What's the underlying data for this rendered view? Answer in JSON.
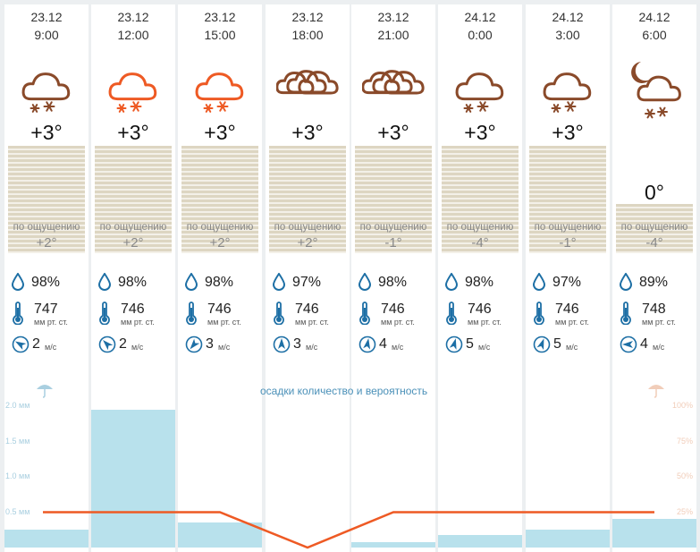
{
  "columns": [
    {
      "date": "23.12",
      "time": "9:00",
      "icon": "cloud-snow-icon",
      "icon_color": "#8a4a2a",
      "temp": "+3°",
      "feels_label": "по ощущению",
      "feels": "+2°",
      "humidity": "98%",
      "pressure": "747",
      "pressure_unit": "мм рт. ст.",
      "wind_speed": "2",
      "wind_unit": "м/с",
      "wind_dir_deg": 300,
      "precip_mm": 0.25,
      "probability": 25
    },
    {
      "date": "23.12",
      "time": "12:00",
      "icon": "cloud-snow-icon",
      "icon_color": "#ee5a24",
      "temp": "+3°",
      "feels_label": "по ощущению",
      "feels": "+2°",
      "humidity": "98%",
      "pressure": "746",
      "pressure_unit": "мм рт. ст.",
      "wind_speed": "2",
      "wind_unit": "м/с",
      "wind_dir_deg": 315,
      "precip_mm": 1.95,
      "probability": 25
    },
    {
      "date": "23.12",
      "time": "15:00",
      "icon": "cloud-snow-icon",
      "icon_color": "#ee5a24",
      "temp": "+3°",
      "feels_label": "по ощущению",
      "feels": "+2°",
      "humidity": "98%",
      "pressure": "746",
      "pressure_unit": "мм рт. ст.",
      "wind_speed": "3",
      "wind_unit": "м/с",
      "wind_dir_deg": 220,
      "precip_mm": 0.35,
      "probability": 25
    },
    {
      "date": "23.12",
      "time": "18:00",
      "icon": "cloudy-icon",
      "icon_color": "#8a4a2a",
      "temp": "+3°",
      "feels_label": "по ощущению",
      "feels": "+2°",
      "humidity": "97%",
      "pressure": "746",
      "pressure_unit": "мм рт. ст.",
      "wind_speed": "3",
      "wind_unit": "м/с",
      "wind_dir_deg": 0,
      "precip_mm": 0,
      "probability": 0
    },
    {
      "date": "23.12",
      "time": "21:00",
      "icon": "cloudy-icon",
      "icon_color": "#8a4a2a",
      "temp": "+3°",
      "feels_label": "по ощущению",
      "feels": "-1°",
      "humidity": "98%",
      "pressure": "746",
      "pressure_unit": "мм рт. ст.",
      "wind_speed": "4",
      "wind_unit": "м/с",
      "wind_dir_deg": 10,
      "precip_mm": 0.08,
      "probability": 25
    },
    {
      "date": "24.12",
      "time": "0:00",
      "icon": "cloud-snow-icon",
      "icon_color": "#8a4a2a",
      "temp": "+3°",
      "feels_label": "по ощущению",
      "feels": "-4°",
      "humidity": "98%",
      "pressure": "746",
      "pressure_unit": "мм рт. ст.",
      "wind_speed": "5",
      "wind_unit": "м/с",
      "wind_dir_deg": 15,
      "precip_mm": 0.18,
      "probability": 25
    },
    {
      "date": "24.12",
      "time": "3:00",
      "icon": "cloud-snow-icon",
      "icon_color": "#8a4a2a",
      "temp": "+3°",
      "feels_label": "по ощущению",
      "feels": "-1°",
      "humidity": "97%",
      "pressure": "746",
      "pressure_unit": "мм рт. ст.",
      "wind_speed": "5",
      "wind_unit": "м/с",
      "wind_dir_deg": 20,
      "precip_mm": 0.25,
      "probability": 25
    },
    {
      "date": "24.12",
      "time": "6:00",
      "icon": "moon-cloud-snow-icon",
      "icon_color": "#8a4a2a",
      "temp": "0°",
      "feels_label": "по ощущению",
      "feels": "-4°",
      "humidity": "89%",
      "pressure": "748",
      "pressure_unit": "мм рт. ст.",
      "wind_speed": "4",
      "wind_unit": "м/с",
      "wind_dir_deg": 270,
      "precip_mm": 0.4,
      "probability": 25
    }
  ],
  "chart_data": {
    "type": "bar",
    "title": "осадки  количество и вероятность",
    "categories": [
      "9:00",
      "12:00",
      "15:00",
      "18:00",
      "21:00",
      "0:00",
      "3:00",
      "6:00"
    ],
    "series": [
      {
        "values": [
          0.25,
          1.95,
          0.35,
          0,
          0.08,
          0.18,
          0.25,
          0.4
        ]
      },
      {
        "values": [
          25,
          25,
          25,
          0,
          25,
          25,
          25,
          25
        ]
      }
    ],
    "y_ticks": [
      "0.5 мм",
      "1.0 мм",
      "1.5 мм",
      "2.0 мм"
    ],
    "y2_ticks": [
      "25%",
      "50%",
      "75%",
      "100%"
    ],
    "ylim": [
      0,
      2.25
    ],
    "y2lim": [
      0,
      112.5
    ],
    "colors": {
      "bars": "#b8e1ec",
      "line": "#ee5a24"
    }
  }
}
